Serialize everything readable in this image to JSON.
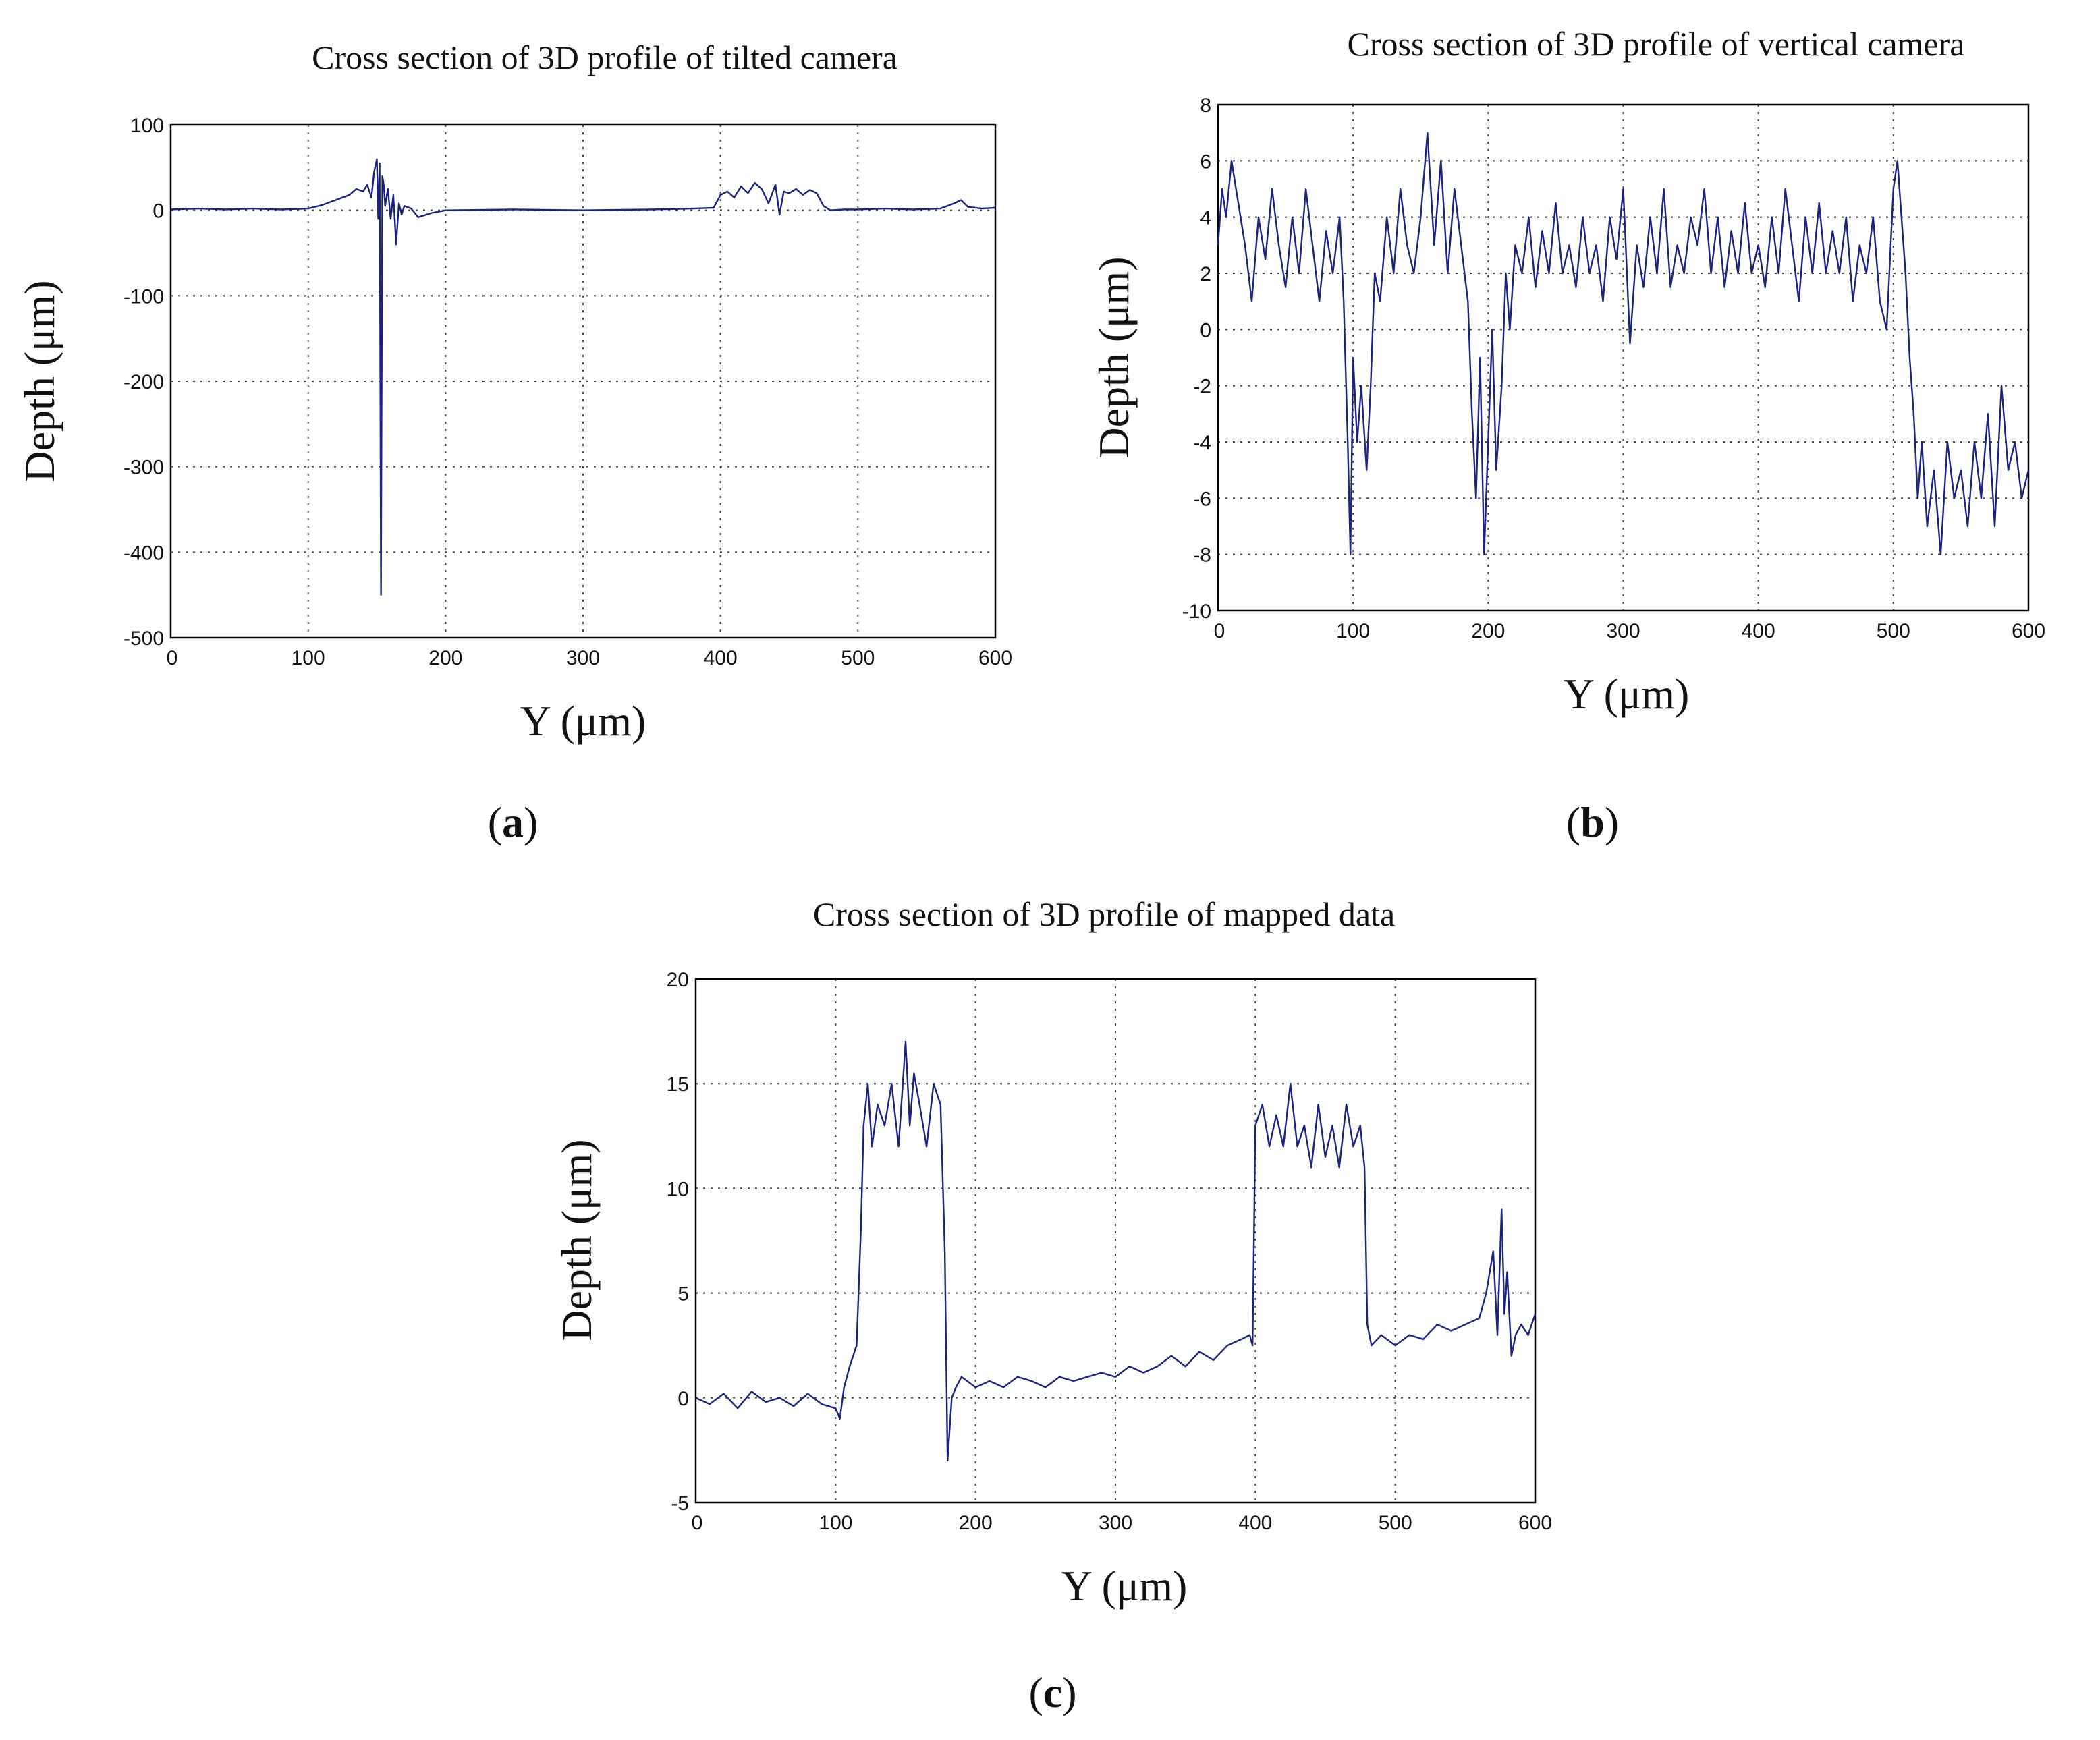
{
  "chart_data": [
    {
      "id": "a",
      "type": "line",
      "panel_label": "a",
      "title": "Cross section of 3D profile of tilted camera",
      "xlabel": "Y (μm)",
      "ylabel": "Depth (μm)",
      "xlim": [
        0,
        600
      ],
      "ylim": [
        -500,
        100
      ],
      "xticks": [
        0,
        100,
        200,
        300,
        400,
        500,
        600
      ],
      "yticks": [
        100,
        0,
        -100,
        -200,
        -300,
        -400,
        -500
      ],
      "grid": true,
      "line_color": "#1a237e",
      "series": [
        {
          "name": "tilted camera",
          "x": [
            0,
            20,
            40,
            60,
            80,
            100,
            110,
            120,
            130,
            135,
            140,
            143,
            146,
            148,
            150,
            151,
            152,
            153,
            154,
            155,
            156,
            158,
            160,
            162,
            164,
            166,
            168,
            170,
            175,
            180,
            190,
            200,
            250,
            300,
            350,
            380,
            395,
            400,
            405,
            410,
            415,
            420,
            425,
            430,
            435,
            440,
            443,
            446,
            450,
            455,
            460,
            465,
            470,
            475,
            480,
            490,
            500,
            520,
            540,
            560,
            570,
            575,
            580,
            590,
            600
          ],
          "y": [
            1,
            2,
            1,
            2,
            1,
            2,
            6,
            12,
            18,
            25,
            22,
            30,
            15,
            45,
            60,
            -10,
            55,
            -450,
            40,
            30,
            5,
            25,
            -10,
            18,
            -40,
            8,
            -5,
            5,
            2,
            -8,
            -3,
            0,
            1,
            0,
            1,
            2,
            3,
            18,
            22,
            15,
            28,
            20,
            32,
            25,
            8,
            30,
            -5,
            22,
            20,
            25,
            18,
            24,
            20,
            5,
            0,
            1,
            1,
            2,
            1,
            2,
            8,
            12,
            4,
            2,
            3
          ]
        }
      ]
    },
    {
      "id": "b",
      "type": "line",
      "panel_label": "b",
      "title": "Cross section of 3D profile of vertical camera",
      "xlabel": "Y (μm)",
      "ylabel": "Depth (μm)",
      "xlim": [
        0,
        600
      ],
      "ylim": [
        -10,
        8
      ],
      "xticks": [
        0,
        100,
        200,
        300,
        400,
        500,
        600
      ],
      "yticks": [
        8,
        6,
        4,
        2,
        0,
        -2,
        -4,
        -6,
        -8,
        -10
      ],
      "grid": true,
      "line_color": "#1a237e",
      "series": [
        {
          "name": "vertical camera",
          "x": [
            0,
            3,
            6,
            10,
            15,
            20,
            25,
            30,
            35,
            40,
            45,
            50,
            55,
            60,
            65,
            70,
            75,
            80,
            85,
            90,
            93,
            96,
            98,
            100,
            103,
            106,
            110,
            113,
            116,
            120,
            125,
            130,
            135,
            140,
            145,
            150,
            155,
            160,
            165,
            170,
            175,
            180,
            185,
            188,
            191,
            194,
            197,
            200,
            203,
            206,
            210,
            213,
            216,
            220,
            225,
            230,
            235,
            240,
            245,
            250,
            255,
            260,
            265,
            270,
            275,
            280,
            285,
            290,
            295,
            300,
            305,
            310,
            315,
            320,
            325,
            330,
            335,
            340,
            345,
            350,
            355,
            360,
            365,
            370,
            375,
            380,
            385,
            390,
            395,
            400,
            405,
            410,
            415,
            420,
            425,
            430,
            435,
            440,
            445,
            450,
            455,
            460,
            465,
            470,
            475,
            480,
            485,
            490,
            495,
            500,
            503,
            506,
            509,
            512,
            515,
            518,
            521,
            525,
            530,
            535,
            540,
            545,
            550,
            555,
            560,
            565,
            570,
            575,
            580,
            585,
            590,
            595,
            600
          ],
          "y": [
            3,
            5,
            4,
            6,
            4.5,
            3,
            1,
            4,
            2.5,
            5,
            3,
            1.5,
            4,
            2,
            5,
            3,
            1,
            3.5,
            2,
            4,
            1,
            -4,
            -8,
            -1,
            -4,
            -2,
            -5,
            -2,
            2,
            1,
            4,
            2,
            5,
            3,
            2,
            4,
            7,
            3,
            6,
            2,
            5,
            3,
            1,
            -3,
            -6,
            -1,
            -8,
            -4,
            0,
            -5,
            -2,
            2,
            0,
            3,
            2,
            4,
            1.5,
            3.5,
            2,
            4.5,
            2,
            3,
            1.5,
            4,
            2,
            3,
            1,
            4,
            2.5,
            5,
            -0.5,
            3,
            1.5,
            4,
            2,
            5,
            1.5,
            3,
            2,
            4,
            3,
            5,
            2,
            4,
            1.5,
            3.5,
            2,
            4.5,
            2,
            3,
            1.5,
            4,
            2,
            5,
            3,
            1,
            4,
            2,
            4.5,
            2,
            3.5,
            2,
            4,
            1,
            3,
            2,
            4,
            1,
            0,
            5,
            6,
            4,
            2,
            -1,
            -3,
            -6,
            -4,
            -7,
            -5,
            -8,
            -4,
            -6,
            -5,
            -7,
            -4,
            -6,
            -3,
            -7,
            -2,
            -5,
            -4,
            -6,
            -5
          ]
        }
      ]
    },
    {
      "id": "c",
      "type": "line",
      "panel_label": "c",
      "title": "Cross section of 3D profile of mapped data",
      "xlabel": "Y (μm)",
      "ylabel": "Depth (μm)",
      "xlim": [
        0,
        600
      ],
      "ylim": [
        -5,
        20
      ],
      "xticks": [
        0,
        100,
        200,
        300,
        400,
        500,
        600
      ],
      "yticks": [
        20,
        15,
        10,
        5,
        0,
        -5
      ],
      "grid": true,
      "line_color": "#1a237e",
      "series": [
        {
          "name": "mapped data",
          "x": [
            0,
            10,
            20,
            30,
            40,
            50,
            60,
            70,
            80,
            90,
            100,
            103,
            106,
            110,
            115,
            118,
            120,
            123,
            126,
            130,
            135,
            140,
            145,
            150,
            153,
            156,
            160,
            165,
            170,
            175,
            178,
            180,
            183,
            186,
            190,
            200,
            210,
            220,
            230,
            240,
            250,
            260,
            270,
            280,
            290,
            300,
            310,
            320,
            330,
            340,
            350,
            360,
            370,
            380,
            390,
            396,
            398,
            400,
            405,
            410,
            415,
            420,
            425,
            430,
            435,
            440,
            445,
            450,
            455,
            460,
            465,
            470,
            475,
            478,
            480,
            483,
            490,
            500,
            510,
            520,
            530,
            540,
            550,
            560,
            565,
            570,
            573,
            576,
            578,
            580,
            583,
            586,
            590,
            595,
            600
          ],
          "y": [
            0,
            -0.3,
            0.2,
            -0.5,
            0.3,
            -0.2,
            0,
            -0.4,
            0.2,
            -0.3,
            -0.5,
            -1,
            0.5,
            1.5,
            2.5,
            8,
            13,
            15,
            12,
            14,
            13,
            15,
            12,
            17,
            13,
            15.5,
            14,
            12,
            15,
            14,
            7,
            -3,
            0,
            0.5,
            1,
            0.5,
            0.8,
            0.5,
            1,
            0.8,
            0.5,
            1,
            0.8,
            1,
            1.2,
            1,
            1.5,
            1.2,
            1.5,
            2,
            1.5,
            2.2,
            1.8,
            2.5,
            2.8,
            3,
            2.5,
            13,
            14,
            12,
            13.5,
            12,
            15,
            12,
            13,
            11,
            14,
            11.5,
            13,
            11,
            14,
            12,
            13,
            11,
            3.5,
            2.5,
            3,
            2.5,
            3,
            2.8,
            3.5,
            3.2,
            3.5,
            3.8,
            5,
            7,
            3,
            9,
            4,
            6,
            2,
            3,
            3.5,
            3,
            4
          ]
        }
      ]
    }
  ]
}
